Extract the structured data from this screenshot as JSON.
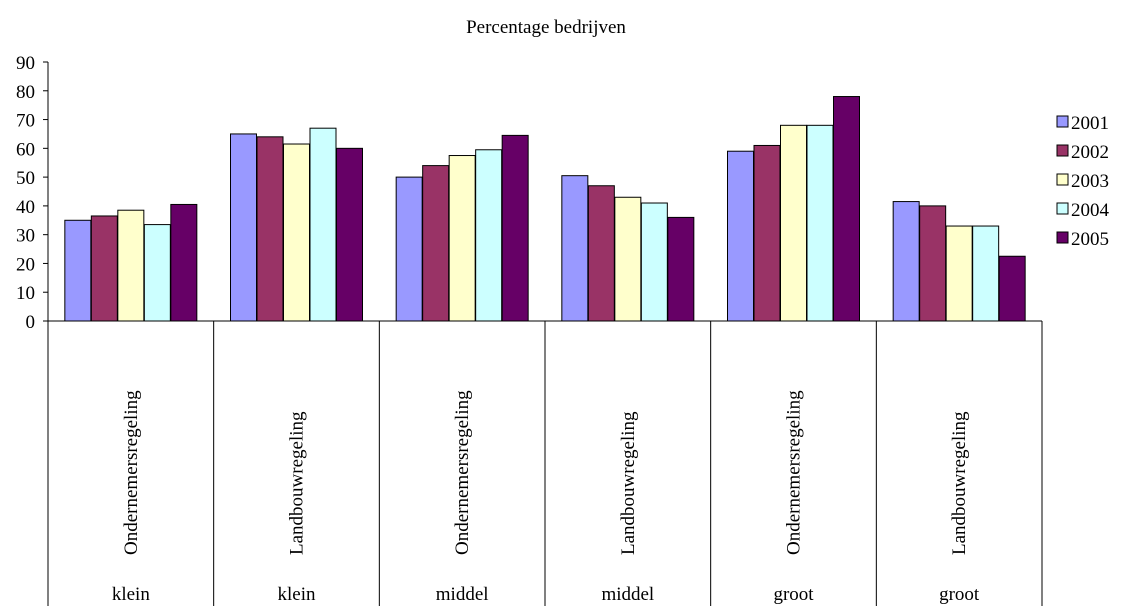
{
  "chart_data": {
    "type": "bar",
    "title": "Percentage bedrijven",
    "xlabel": "",
    "ylabel": "",
    "ylim": [
      0,
      90
    ],
    "yticks": [
      0,
      10,
      20,
      30,
      40,
      50,
      60,
      70,
      80,
      90
    ],
    "grid": false,
    "legend_position": "right",
    "categories": [
      {
        "regeling": "Ondernemersregeling",
        "grootte": "klein"
      },
      {
        "regeling": "Landbouwregeling",
        "grootte": "klein"
      },
      {
        "regeling": "Ondernemersregeling",
        "grootte": "middel"
      },
      {
        "regeling": "Landbouwregeling",
        "grootte": "middel"
      },
      {
        "regeling": "Ondernemersregeling",
        "grootte": "groot"
      },
      {
        "regeling": "Landbouwregeling",
        "grootte": "groot"
      }
    ],
    "series": [
      {
        "name": "2001",
        "color": "#9999ff",
        "values": [
          35,
          65,
          50,
          50.5,
          59,
          41.5
        ]
      },
      {
        "name": "2002",
        "color": "#993366",
        "values": [
          36.5,
          64,
          54,
          47,
          61,
          40
        ]
      },
      {
        "name": "2003",
        "color": "#ffffcc",
        "values": [
          38.5,
          61.5,
          57.5,
          43,
          68,
          33
        ]
      },
      {
        "name": "2004",
        "color": "#ccffff",
        "values": [
          33.5,
          67,
          59.5,
          41,
          68,
          33
        ]
      },
      {
        "name": "2005",
        "color": "#660066",
        "values": [
          40.5,
          60,
          64.5,
          36,
          78,
          22.5
        ]
      }
    ]
  }
}
